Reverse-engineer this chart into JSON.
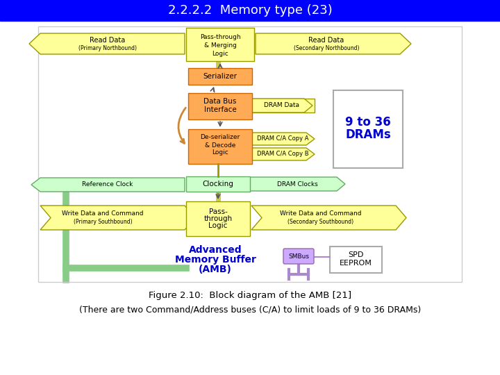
{
  "title": "2.2.2.2  Memory type (23)",
  "title_bg": "#0000FF",
  "title_color": "#FFFFFF",
  "title_fontsize": 13,
  "fig_caption": "Figure 2.10:  Block diagram of the AMB [21]",
  "fig_caption2": "(There are two Command/Address buses (C/A) to limit loads of 9 to 36 DRAMs)",
  "caption_fontsize": 9.5,
  "bg_color": "#FFFFFF",
  "yellow_color": "#FFFF99",
  "orange_color": "#FFAA55",
  "light_green": "#CCFFCC",
  "purple_color": "#CCAAFF",
  "blue_text": "#0000CC"
}
